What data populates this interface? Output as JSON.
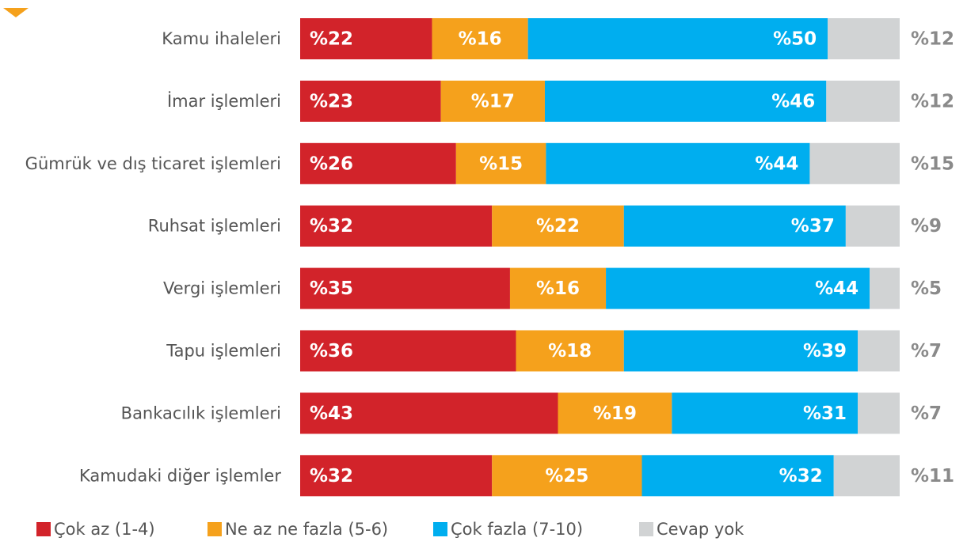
{
  "chart_data": {
    "type": "stacked-bar-horizontal",
    "categories": [
      "Kamu ihaleleri",
      "İmar işlemleri",
      "Gümrük ve dış ticaret işlemleri",
      "Ruhsat işlemleri",
      "Vergi işlemleri",
      "Tapu işlemleri",
      "Bankacılık işlemleri",
      "Kamudaki diğer işlemler"
    ],
    "series": [
      {
        "name": "Çok az (1-4)",
        "color": "#d2232a",
        "values": [
          22,
          23,
          26,
          32,
          35,
          36,
          43,
          32
        ],
        "value_labels": [
          "%22",
          "%23",
          "%26",
          "%32",
          "%35",
          "%36",
          "%43",
          "%32"
        ]
      },
      {
        "name": "Ne az ne fazla (5-6)",
        "color": "#f5a11c",
        "values": [
          16,
          17,
          15,
          22,
          16,
          18,
          19,
          25
        ],
        "value_labels": [
          "%16",
          "%17",
          "%15",
          "%22",
          "%16",
          "%18",
          "%19",
          "%25"
        ]
      },
      {
        "name": "Çok fazla (7-10)",
        "color": "#00aeef",
        "values": [
          50,
          46,
          44,
          37,
          44,
          39,
          31,
          32
        ],
        "value_labels": [
          "%50",
          "%46",
          "%44",
          "%37",
          "%44",
          "%39",
          "%31",
          "%32"
        ]
      },
      {
        "name": "Cevap yok",
        "color": "#d1d3d4",
        "values": [
          12,
          12,
          15,
          9,
          5,
          7,
          7,
          11
        ],
        "value_labels": [
          "%12",
          "%12",
          "%15",
          "%9",
          "%5",
          "%7",
          "%7",
          "%11"
        ]
      }
    ]
  }
}
